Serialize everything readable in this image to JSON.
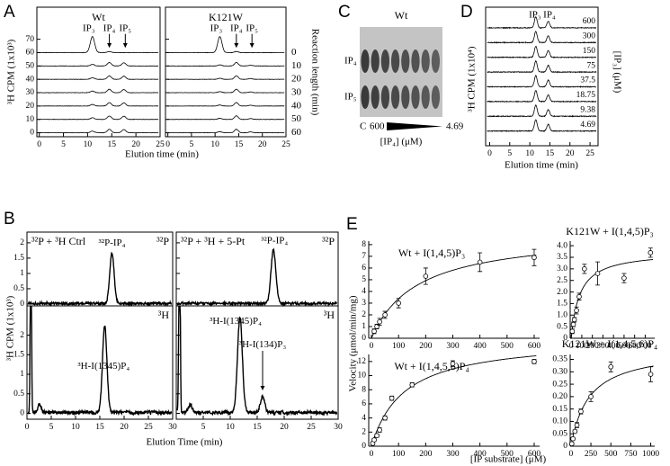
{
  "panels": {
    "A": {
      "label": "A",
      "titles": [
        "Wt",
        "K121W"
      ],
      "y_label": "³H CPM (1x10³)",
      "x_label": "Elution time (min)",
      "right_label": "Reaction length (min)",
      "peaks": [
        "IP₃",
        "IP₄",
        "IP₅"
      ],
      "reaction_lengths": [
        0,
        10,
        20,
        30,
        40,
        50,
        60
      ],
      "xlim": [
        -0.5,
        25
      ],
      "ylim": [
        -3,
        94
      ],
      "xticks": [
        0,
        5,
        10,
        15,
        20,
        25
      ],
      "yticks": [
        0,
        10,
        20,
        30,
        40,
        50,
        60,
        70
      ]
    },
    "B": {
      "label": "B",
      "y_label": "³H CPM (1x10³)",
      "x_label": "Elution Time (min)",
      "plots": [
        {
          "title": "³²P + ³H Ctrl",
          "channel": "³²P",
          "annotations": [
            "³²P-IP₄"
          ]
        },
        {
          "title": "³²P + ³H + 5-Pt",
          "channel": "³²P",
          "annotations": [
            "³²P-IP₄"
          ]
        },
        {
          "channel": "³H",
          "annotations": [
            "³H-I(1345)P₄"
          ]
        },
        {
          "channel": "³H",
          "annotations": [
            "³H-I(1345)P₄",
            "³H-I(134)P₃"
          ]
        }
      ],
      "xlim": [
        0,
        30
      ],
      "xticks": [
        0,
        5,
        10,
        15,
        20,
        25,
        30
      ],
      "xticks_right": [
        5,
        10,
        15,
        20,
        25,
        30
      ],
      "ylim_top": [
        -0.06,
        2.35
      ],
      "ylim_bottom": [
        -0.15,
        2.75
      ],
      "yticks": [
        0,
        0.5,
        1,
        1.5,
        2
      ]
    },
    "C": {
      "label": "C",
      "title": "Wt",
      "rows": [
        "IP₄",
        "IP₅"
      ],
      "control": "C",
      "concentrations": [
        600,
        4.69
      ],
      "x_label": "[IP₄] (μM)"
    },
    "D": {
      "label": "D",
      "peaks": [
        "IP₃",
        "IP₄"
      ],
      "y_label": "³H CPM (1x10⁴)",
      "x_label": "Elution time (min)",
      "right_label": "[IP₃] (μM)",
      "concentrations": [
        600,
        300,
        150,
        75,
        37.5,
        18.75,
        9.38,
        4.69
      ],
      "xlim": [
        -1,
        27
      ],
      "xticks": [
        0,
        5,
        10,
        15,
        20,
        25
      ]
    },
    "E": {
      "label": "E",
      "y_label": "Velocity (μmol/min/mg)",
      "x_label": "[IP substrate] (μM)",
      "charts": [
        {
          "type": "scatter",
          "title": "Wt + I(1,4,5)P₃",
          "x": [
            10,
            20,
            30,
            50,
            100,
            200,
            400,
            600
          ],
          "values": [
            0.6,
            1.0,
            1.4,
            2.0,
            3.0,
            5.3,
            6.5,
            6.9
          ],
          "errors": [
            0.2,
            0.2,
            0.3,
            0.3,
            0.4,
            0.7,
            0.8,
            0.7
          ],
          "xlim": [
            -10,
            620
          ],
          "ylim": [
            0,
            8.3
          ],
          "xticks": [
            0,
            100,
            200,
            300,
            400,
            500,
            600
          ],
          "yticks": [
            0,
            1,
            2,
            3,
            4,
            5,
            6,
            7,
            8
          ]
        },
        {
          "type": "scatter",
          "title": "K121W + I(1,4,5)P₃",
          "x": [
            10,
            20,
            30,
            50,
            75,
            125,
            250,
            500,
            750
          ],
          "values": [
            0.3,
            0.6,
            0.8,
            1.2,
            1.8,
            3.0,
            2.8,
            2.6,
            3.7
          ],
          "errors": [
            0.1,
            0.1,
            0.1,
            0.15,
            0.15,
            0.2,
            0.5,
            0.2,
            0.2
          ],
          "xlim": [
            -10,
            790
          ],
          "ylim": [
            0,
            4.2
          ],
          "xticks": [
            0,
            100,
            200,
            300,
            400,
            500,
            600,
            700
          ],
          "yticks": [
            0,
            0.5,
            {
              "value": 1,
              "label": "1.0"
            },
            1.5,
            {
              "value": 2,
              "label": "2.0"
            },
            2.5,
            {
              "value": 3,
              "label": "3.0"
            },
            3.5,
            {
              "value": 4,
              "label": "4.0"
            }
          ]
        },
        {
          "type": "scatter",
          "title": "Wt + I(1,4,5,6)P₄",
          "x": [
            5,
            10,
            20,
            30,
            50,
            75,
            150,
            300,
            600
          ],
          "values": [
            0.4,
            0.9,
            1.5,
            2.3,
            4.0,
            6.8,
            8.7,
            11.7,
            12.0
          ],
          "errors": [
            0.2,
            0.2,
            0.2,
            0.3,
            0.3,
            0.3,
            0.3,
            0.4,
            0.3
          ],
          "xlim": [
            -10,
            620
          ],
          "ylim": [
            0,
            13
          ],
          "xticks": [
            0,
            100,
            200,
            300,
            400,
            500,
            600
          ],
          "yticks": [
            0,
            2,
            4,
            6,
            8,
            10,
            12
          ]
        },
        {
          "type": "scatter",
          "title": "K121W + I(1,4,5,6)P₄",
          "x": [
            10,
            25,
            50,
            75,
            125,
            250,
            500,
            1000
          ],
          "values": [
            0.01,
            0.03,
            0.06,
            0.085,
            0.14,
            0.2,
            0.32,
            0.29
          ],
          "errors": [
            0.005,
            0.005,
            0.005,
            0.01,
            0.01,
            0.02,
            0.02,
            0.03
          ],
          "xlim": [
            -10,
            1050
          ],
          "ylim": [
            0,
            0.37
          ],
          "xticks": [
            0,
            250,
            500,
            750,
            1000
          ],
          "yticks": [
            0,
            0.05,
            {
              "value": 0.1,
              "label": "0.10"
            },
            0.15,
            {
              "value": 0.2,
              "label": "0.20"
            },
            0.25,
            {
              "value": 0.3,
              "label": "0.30"
            },
            0.35
          ]
        }
      ]
    }
  }
}
